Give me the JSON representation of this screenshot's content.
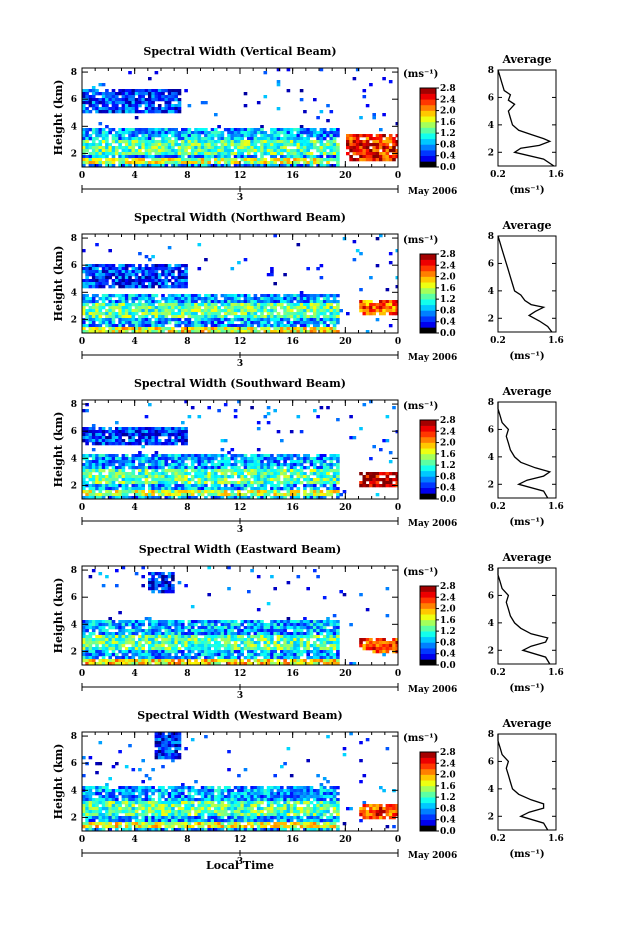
{
  "chart_data": [
    {
      "type": "heatmap",
      "title": "Spectral Width (Vertical Beam)",
      "ylabel": "Height (km)",
      "yticks": [
        "2",
        "4",
        "6",
        "8"
      ],
      "xticks": [
        "0",
        "4",
        "8",
        "12",
        "16",
        "20",
        "0"
      ],
      "date_day": "3",
      "date_label": "May 2006",
      "colorbar_unit": "(ms⁻¹)",
      "colorbar_ticks": [
        "0.0",
        "0.4",
        "0.8",
        "1.2",
        "1.6",
        "2.0",
        "2.4",
        "2.8"
      ],
      "xlim": [
        0,
        24
      ],
      "ylim": [
        1,
        8.3
      ],
      "clim": [
        0,
        2.8
      ],
      "layers": [
        {
          "x0": 0,
          "x1": 19.5,
          "y0": 1.2,
          "y1": 4.0,
          "level": 0.8
        },
        {
          "x0": 0,
          "x1": 19.5,
          "y0": 2.0,
          "y1": 3.2,
          "level": 1.3
        },
        {
          "x0": 0,
          "x1": 19.5,
          "y0": 1.3,
          "y1": 1.7,
          "level": 1.6
        },
        {
          "x0": 0,
          "x1": 7.5,
          "y0": 5.0,
          "y1": 6.8,
          "level": 0.5
        },
        {
          "x0": 20,
          "x1": 24,
          "y0": 1.5,
          "y1": 3.5,
          "level": 2.4
        }
      ],
      "avg_profile": {
        "title": "Average",
        "xlabel": "(ms⁻¹)",
        "xticks": [
          "0.2",
          "1.6"
        ],
        "yticks": [
          "2",
          "4",
          "6",
          "8"
        ],
        "xlim": [
          0.2,
          1.6
        ],
        "ylim": [
          1,
          8
        ],
        "heights": [
          1.0,
          1.5,
          2.0,
          2.3,
          2.5,
          2.8,
          3.0,
          3.3,
          3.6,
          4.0,
          4.5,
          5.0,
          5.5,
          5.8,
          6.2,
          6.5,
          7.0,
          7.5,
          8.0
        ],
        "values": [
          1.55,
          1.3,
          0.6,
          0.75,
          1.2,
          1.45,
          1.3,
          1.0,
          0.7,
          0.55,
          0.5,
          0.45,
          0.6,
          0.45,
          0.5,
          0.35,
          0.3,
          0.25,
          0.2
        ]
      }
    },
    {
      "type": "heatmap",
      "title": "Spectral Width (Northward Beam)",
      "ylabel": "Height (km)",
      "yticks": [
        "2",
        "4",
        "6",
        "8"
      ],
      "xticks": [
        "0",
        "4",
        "8",
        "12",
        "16",
        "20",
        "0"
      ],
      "date_day": "3",
      "date_label": "May 2006",
      "colorbar_unit": "(ms⁻¹)",
      "colorbar_ticks": [
        "0.0",
        "0.4",
        "0.8",
        "1.2",
        "1.6",
        "2.0",
        "2.4",
        "2.8"
      ],
      "xlim": [
        0,
        24
      ],
      "ylim": [
        1,
        8.3
      ],
      "clim": [
        0,
        2.8
      ],
      "layers": [
        {
          "x0": 0,
          "x1": 19.5,
          "y0": 1.2,
          "y1": 4.0,
          "level": 0.8
        },
        {
          "x0": 0,
          "x1": 19.5,
          "y0": 2.2,
          "y1": 3.3,
          "level": 1.3
        },
        {
          "x0": 0,
          "x1": 19.5,
          "y0": 1.2,
          "y1": 1.6,
          "level": 1.7
        },
        {
          "x0": 0,
          "x1": 8,
          "y0": 4.5,
          "y1": 6.2,
          "level": 0.5
        },
        {
          "x0": 21,
          "x1": 24,
          "y0": 2.5,
          "y1": 3.5,
          "level": 2.2
        }
      ],
      "avg_profile": {
        "title": "Average",
        "xlabel": "(ms⁻¹)",
        "xticks": [
          "0.2",
          "1.6"
        ],
        "yticks": [
          "2",
          "4",
          "6",
          "8"
        ],
        "xlim": [
          0.2,
          1.6
        ],
        "ylim": [
          1,
          8
        ],
        "heights": [
          1.0,
          1.4,
          1.8,
          2.2,
          2.5,
          2.8,
          3.0,
          3.3,
          3.7,
          4.0,
          4.5,
          5.0,
          5.5,
          6.0,
          6.5,
          7.0,
          7.5,
          8.0
        ],
        "values": [
          1.5,
          1.4,
          1.2,
          0.95,
          1.1,
          1.3,
          1.0,
          0.85,
          0.75,
          0.6,
          0.55,
          0.5,
          0.45,
          0.4,
          0.35,
          0.3,
          0.25,
          0.2
        ]
      }
    },
    {
      "type": "heatmap",
      "title": "Spectral Width (Southward Beam)",
      "ylabel": "Height (km)",
      "yticks": [
        "2",
        "4",
        "6",
        "8"
      ],
      "xticks": [
        "0",
        "4",
        "8",
        "12",
        "16",
        "20",
        "0"
      ],
      "date_day": "3",
      "date_label": "May 2006",
      "colorbar_unit": "(ms⁻¹)",
      "colorbar_ticks": [
        "0.0",
        "0.4",
        "0.8",
        "1.2",
        "1.6",
        "2.0",
        "2.4",
        "2.8"
      ],
      "xlim": [
        0,
        24
      ],
      "ylim": [
        1,
        8.3
      ],
      "clim": [
        0,
        2.8
      ],
      "layers": [
        {
          "x0": 0,
          "x1": 19.5,
          "y0": 1.2,
          "y1": 4.5,
          "level": 0.8
        },
        {
          "x0": 0,
          "x1": 19.5,
          "y0": 2.3,
          "y1": 3.3,
          "level": 1.3
        },
        {
          "x0": 0,
          "x1": 19.5,
          "y0": 1.3,
          "y1": 1.7,
          "level": 1.6
        },
        {
          "x0": 0,
          "x1": 8,
          "y0": 5.0,
          "y1": 6.5,
          "level": 0.5
        },
        {
          "x0": 21,
          "x1": 24,
          "y0": 2.0,
          "y1": 3.0,
          "level": 2.6
        }
      ],
      "avg_profile": {
        "title": "Average",
        "xlabel": "(ms⁻¹)",
        "xticks": [
          "0.2",
          "1.6"
        ],
        "yticks": [
          "2",
          "4",
          "6",
          "8"
        ],
        "xlim": [
          0.2,
          1.6
        ],
        "ylim": [
          1,
          8
        ],
        "heights": [
          1.0,
          1.5,
          2.0,
          2.3,
          2.6,
          2.9,
          3.2,
          3.6,
          4.0,
          4.5,
          5.0,
          5.5,
          6.0,
          6.5,
          7.0,
          7.5,
          8.0
        ],
        "values": [
          1.4,
          1.3,
          0.7,
          0.9,
          1.3,
          1.45,
          1.1,
          0.75,
          0.6,
          0.5,
          0.45,
          0.4,
          0.45,
          0.3,
          0.25,
          0.2,
          0.2
        ]
      }
    },
    {
      "type": "heatmap",
      "title": "Spectral Width (Eastward Beam)",
      "ylabel": "Height (km)",
      "yticks": [
        "2",
        "4",
        "6",
        "8"
      ],
      "xticks": [
        "0",
        "4",
        "8",
        "12",
        "16",
        "20",
        "0"
      ],
      "date_day": "3",
      "date_label": "May 2006",
      "colorbar_unit": "(ms⁻¹)",
      "colorbar_ticks": [
        "0.0",
        "0.4",
        "0.8",
        "1.2",
        "1.6",
        "2.0",
        "2.4",
        "2.8"
      ],
      "xlim": [
        0,
        24
      ],
      "ylim": [
        1,
        8.3
      ],
      "clim": [
        0,
        2.8
      ],
      "layers": [
        {
          "x0": 0,
          "x1": 19.5,
          "y0": 1.2,
          "y1": 4.5,
          "level": 0.8
        },
        {
          "x0": 0,
          "x1": 19.5,
          "y0": 2.3,
          "y1": 3.3,
          "level": 1.3
        },
        {
          "x0": 0,
          "x1": 19.5,
          "y0": 1.2,
          "y1": 1.6,
          "level": 1.8
        },
        {
          "x0": 5,
          "x1": 7,
          "y0": 6.5,
          "y1": 8.0,
          "level": 0.4
        },
        {
          "x0": 21,
          "x1": 24,
          "y0": 2.0,
          "y1": 3.0,
          "level": 2.3
        }
      ],
      "avg_profile": {
        "title": "Average",
        "xlabel": "(ms⁻¹)",
        "xticks": [
          "0.2",
          "1.6"
        ],
        "yticks": [
          "2",
          "4",
          "6",
          "8"
        ],
        "xlim": [
          0.2,
          1.6
        ],
        "ylim": [
          1,
          8
        ],
        "heights": [
          1.0,
          1.5,
          2.0,
          2.3,
          2.6,
          2.9,
          3.2,
          3.6,
          4.0,
          4.5,
          5.0,
          5.5,
          6.0,
          6.5,
          7.0,
          7.5,
          8.0
        ],
        "values": [
          1.45,
          1.35,
          0.8,
          1.0,
          1.35,
          1.4,
          1.0,
          0.75,
          0.6,
          0.5,
          0.45,
          0.4,
          0.45,
          0.3,
          0.25,
          0.2,
          0.2
        ]
      }
    },
    {
      "type": "heatmap",
      "title": "Spectral Width (Westward Beam)",
      "ylabel": "Height (km)",
      "xlabel": "Local Time",
      "yticks": [
        "2",
        "4",
        "6",
        "8"
      ],
      "xticks": [
        "0",
        "4",
        "8",
        "12",
        "16",
        "20",
        "0"
      ],
      "date_day": "3",
      "date_label": "May 2006",
      "colorbar_unit": "(ms⁻¹)",
      "colorbar_ticks": [
        "0.0",
        "0.4",
        "0.8",
        "1.2",
        "1.6",
        "2.0",
        "2.4",
        "2.8"
      ],
      "xlim": [
        0,
        24
      ],
      "ylim": [
        1,
        8.3
      ],
      "clim": [
        0,
        2.8
      ],
      "layers": [
        {
          "x0": 0,
          "x1": 19.5,
          "y0": 1.2,
          "y1": 4.5,
          "level": 0.8
        },
        {
          "x0": 0,
          "x1": 19.5,
          "y0": 2.3,
          "y1": 3.3,
          "level": 1.3
        },
        {
          "x0": 0,
          "x1": 19.5,
          "y0": 1.3,
          "y1": 1.7,
          "level": 1.7
        },
        {
          "x0": 5.5,
          "x1": 7.5,
          "y0": 6.5,
          "y1": 8.3,
          "level": 0.4
        },
        {
          "x0": 21,
          "x1": 24,
          "y0": 2.0,
          "y1": 3.0,
          "level": 2.3
        }
      ],
      "avg_profile": {
        "title": "Average",
        "xlabel": "(ms⁻¹)",
        "xticks": [
          "0.2",
          "1.6"
        ],
        "yticks": [
          "2",
          "4",
          "6",
          "8"
        ],
        "xlim": [
          0.2,
          1.6
        ],
        "ylim": [
          1,
          8
        ],
        "heights": [
          1.0,
          1.5,
          2.0,
          2.3,
          2.6,
          2.9,
          3.2,
          3.6,
          4.0,
          4.5,
          5.0,
          5.5,
          6.0,
          6.5,
          7.0,
          7.5,
          8.0
        ],
        "values": [
          1.4,
          1.3,
          0.75,
          0.95,
          1.3,
          1.3,
          1.0,
          0.7,
          0.55,
          0.5,
          0.45,
          0.4,
          0.45,
          0.3,
          0.25,
          0.2,
          0.2
        ]
      }
    }
  ]
}
